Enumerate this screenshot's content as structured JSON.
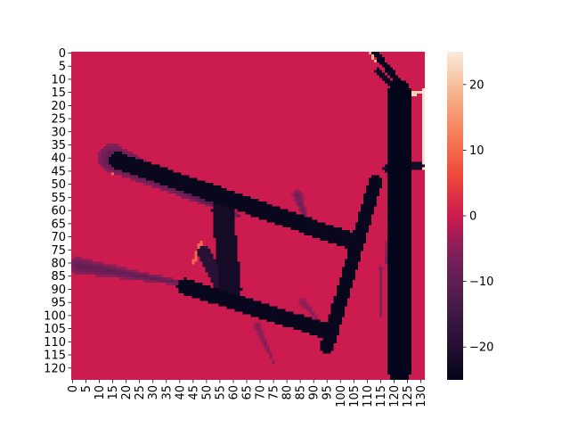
{
  "chart_data": {
    "type": "heatmap",
    "title": "",
    "xlabel": "",
    "ylabel": "",
    "rows": 125,
    "cols": 132,
    "x_tick_labels": [
      "0",
      "5",
      "10",
      "15",
      "20",
      "25",
      "30",
      "35",
      "40",
      "45",
      "50",
      "55",
      "60",
      "65",
      "70",
      "75",
      "80",
      "85",
      "90",
      "95",
      "100",
      "105",
      "110",
      "115",
      "120",
      "125",
      "130"
    ],
    "y_tick_labels": [
      "0",
      "5",
      "10",
      "15",
      "20",
      "25",
      "30",
      "35",
      "40",
      "45",
      "50",
      "55",
      "60",
      "65",
      "70",
      "75",
      "80",
      "85",
      "90",
      "95",
      "100",
      "105",
      "110",
      "115",
      "120"
    ],
    "colorbar": {
      "min": -25,
      "max": 25,
      "tick_labels": [
        "20",
        "10",
        "0",
        "−10",
        "−20"
      ],
      "tick_values": [
        20,
        10,
        0,
        -10,
        -20
      ]
    },
    "colormap": "rocket",
    "background_value": 0,
    "dark_value": -25,
    "features": [
      {
        "kind": "band",
        "from": [
          17,
          41
        ],
        "to": [
          105,
          72
        ],
        "width": 3.2,
        "value": -24
      },
      {
        "kind": "band",
        "from": [
          42,
          89
        ],
        "to": [
          95,
          106
        ],
        "width": 3.0,
        "value": -24
      },
      {
        "kind": "band",
        "from": [
          95,
          112
        ],
        "to": [
          113,
          49
        ],
        "width": 2.6,
        "value": -24
      },
      {
        "kind": "band",
        "from": [
          56,
          60
        ],
        "to": [
          59,
          90
        ],
        "width": 4.0,
        "value": -22
      },
      {
        "kind": "band",
        "from": [
          49,
          76
        ],
        "to": [
          55,
          88
        ],
        "width": 2.5,
        "value": -19
      },
      {
        "kind": "band",
        "from": [
          122,
          14
        ],
        "to": [
          122,
          122
        ],
        "width": 4.0,
        "value": -25
      },
      {
        "kind": "band",
        "from": [
          113,
          0
        ],
        "to": [
          124,
          14
        ],
        "width": 1.2,
        "value": -24
      },
      {
        "kind": "band",
        "from": [
          114,
          7
        ],
        "to": [
          121,
          14
        ],
        "width": 1.0,
        "value": -23
      },
      {
        "kind": "band",
        "from": [
          117,
          44
        ],
        "to": [
          130,
          43
        ],
        "width": 1.3,
        "value": -22
      },
      {
        "kind": "cone",
        "from": [
          15,
          40
        ],
        "to": [
          62,
          62
        ],
        "w0": 5.5,
        "w1": 0.5,
        "value": -12
      },
      {
        "kind": "cone",
        "from": [
          2,
          81
        ],
        "to": [
          48,
          89
        ],
        "w0": 3.2,
        "w1": 0.5,
        "value": -10
      },
      {
        "kind": "cone",
        "from": [
          84,
          54
        ],
        "to": [
          88,
          66
        ],
        "w0": 2.0,
        "w1": 0.5,
        "value": -8
      },
      {
        "kind": "cone",
        "from": [
          86,
          95
        ],
        "to": [
          92,
          102
        ],
        "w0": 1.5,
        "w1": 0.5,
        "value": -6
      },
      {
        "kind": "cone",
        "from": [
          69,
          104
        ],
        "to": [
          75,
          118
        ],
        "w0": 1.5,
        "w1": 0.4,
        "value": -6
      },
      {
        "kind": "cone",
        "from": [
          120,
          40
        ],
        "to": [
          117,
          80
        ],
        "w0": 1.2,
        "w1": 0.5,
        "value": -6
      },
      {
        "kind": "cone",
        "from": [
          115,
          82
        ],
        "to": [
          115,
          100
        ],
        "w0": 1.0,
        "w1": 0.4,
        "value": -5
      },
      {
        "kind": "band",
        "from": [
          16,
          40
        ],
        "to": [
          15,
          46
        ],
        "width": 0.6,
        "value": 10
      },
      {
        "kind": "band",
        "from": [
          70,
          62
        ],
        "to": [
          105,
          72
        ],
        "width": 0.6,
        "value": 14
      },
      {
        "kind": "band",
        "from": [
          60,
          96
        ],
        "to": [
          95,
          108
        ],
        "width": 0.6,
        "value": 12
      },
      {
        "kind": "band",
        "from": [
          94,
          114
        ],
        "to": [
          111,
          50
        ],
        "width": 0.7,
        "value": 14
      },
      {
        "kind": "band",
        "from": [
          124,
          16
        ],
        "to": [
          131,
          15
        ],
        "width": 0.6,
        "value": 22
      },
      {
        "kind": "band",
        "from": [
          131,
          14
        ],
        "to": [
          131,
          44
        ],
        "width": 0.6,
        "value": 24
      },
      {
        "kind": "band",
        "from": [
          118,
          10
        ],
        "to": [
          124,
          15
        ],
        "width": 0.5,
        "value": 14
      },
      {
        "kind": "band",
        "from": [
          111,
          0
        ],
        "to": [
          113,
          3
        ],
        "width": 0.5,
        "value": 18
      },
      {
        "kind": "band",
        "from": [
          118,
          50
        ],
        "to": [
          120,
          120
        ],
        "width": 0.5,
        "value": 8
      },
      {
        "kind": "band",
        "from": [
          48,
          72
        ],
        "to": [
          45,
          80
        ],
        "width": 0.6,
        "value": 10
      },
      {
        "kind": "band",
        "from": [
          42,
          88
        ],
        "to": [
          40,
          90
        ],
        "width": 0.5,
        "value": 10
      }
    ]
  }
}
